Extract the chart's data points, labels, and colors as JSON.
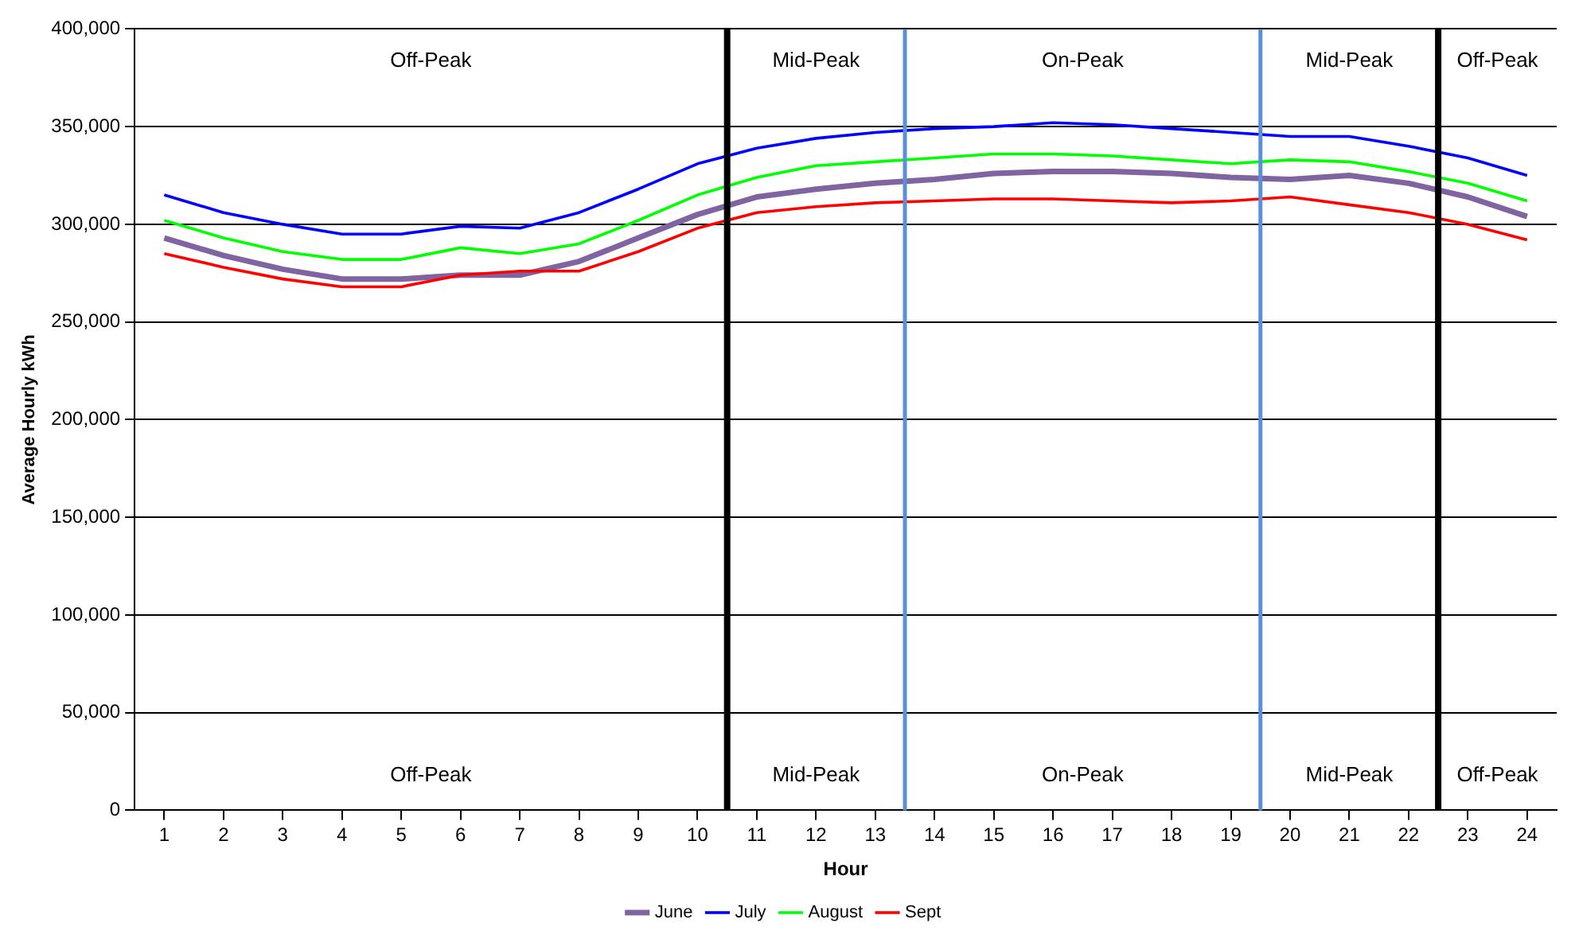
{
  "chart_data": {
    "type": "line",
    "xlabel": "Hour",
    "ylabel": "Average Hourly kWh",
    "x": [
      1,
      2,
      3,
      4,
      5,
      6,
      7,
      8,
      9,
      10,
      11,
      12,
      13,
      14,
      15,
      16,
      17,
      18,
      19,
      20,
      21,
      22,
      23,
      24
    ],
    "xlim": [
      0.5,
      24.5
    ],
    "xticks": [
      1,
      2,
      3,
      4,
      5,
      6,
      7,
      8,
      9,
      10,
      11,
      12,
      13,
      14,
      15,
      16,
      17,
      18,
      19,
      20,
      21,
      22,
      23,
      24
    ],
    "ylim": [
      0,
      400000
    ],
    "yticks": [
      {
        "value": 0,
        "label": "0"
      },
      {
        "value": 50000,
        "label": "50,000"
      },
      {
        "value": 100000,
        "label": "100,000"
      },
      {
        "value": 150000,
        "label": "150,000"
      },
      {
        "value": 200000,
        "label": "200,000"
      },
      {
        "value": 250000,
        "label": "250,000"
      },
      {
        "value": 300000,
        "label": "300,000"
      },
      {
        "value": 350000,
        "label": "350,000"
      },
      {
        "value": 400000,
        "label": "400,000"
      }
    ],
    "grid": "y",
    "legend": "bottom",
    "marker": "none",
    "line_style": "solid",
    "series": [
      {
        "name": "June",
        "color": "#8064a2",
        "values": [
          293000,
          284000,
          277000,
          272000,
          272000,
          274000,
          274000,
          281000,
          293000,
          305000,
          314000,
          318000,
          321000,
          323000,
          326000,
          327000,
          327000,
          326000,
          324000,
          323000,
          325000,
          321000,
          314000,
          304000
        ]
      },
      {
        "name": "July",
        "color": "#0000ff",
        "values": [
          315000,
          306000,
          300000,
          295000,
          295000,
          299000,
          298000,
          306000,
          318000,
          331000,
          339000,
          344000,
          347000,
          349000,
          350000,
          352000,
          351000,
          349000,
          347000,
          345000,
          345000,
          340000,
          334000,
          325000
        ]
      },
      {
        "name": "August",
        "color": "#00ff00",
        "values": [
          302000,
          293000,
          286000,
          282000,
          282000,
          288000,
          285000,
          290000,
          302000,
          315000,
          324000,
          330000,
          332000,
          334000,
          336000,
          336000,
          335000,
          333000,
          331000,
          333000,
          332000,
          327000,
          321000,
          312000
        ]
      },
      {
        "name": "Sept",
        "color": "#ff0000",
        "values": [
          285000,
          278000,
          272000,
          268000,
          268000,
          274000,
          276000,
          276000,
          286000,
          298000,
          306000,
          309000,
          311000,
          312000,
          313000,
          313000,
          312000,
          311000,
          312000,
          314000,
          310000,
          306000,
          300000,
          292000
        ]
      }
    ],
    "ref_lines": [
      {
        "axis": "x",
        "value": 10.5,
        "color": "#000000"
      },
      {
        "axis": "x",
        "value": 13.5,
        "color": "#5b8fd6"
      },
      {
        "axis": "x",
        "value": 19.5,
        "color": "#5b8fd6"
      },
      {
        "axis": "x",
        "value": 22.5,
        "color": "#000000"
      }
    ],
    "annotations": [
      "Off-Peak",
      "Off-Peak",
      "Mid-Peak",
      "Mid-Peak",
      "On-Peak",
      "On-Peak",
      "Mid-Peak",
      "Mid-Peak",
      "Off-Peak",
      "Off-Peak"
    ]
  }
}
